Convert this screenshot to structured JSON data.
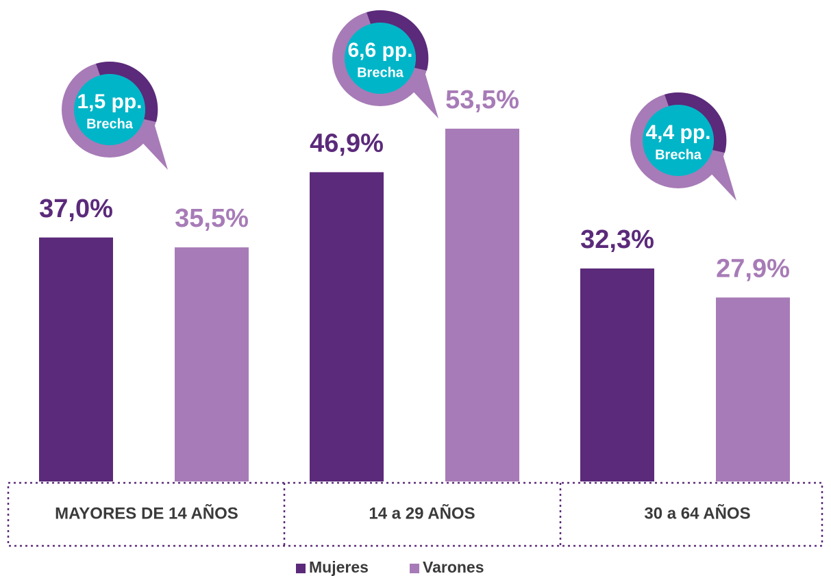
{
  "chart_data": {
    "type": "bar",
    "categories": [
      "MAYORES DE 14 AÑOS",
      "14 a 29 AÑOS",
      "30 a 64 AÑOS"
    ],
    "series": [
      {
        "name": "Mujeres",
        "color": "#5b2a7a",
        "values": [
          37.0,
          46.9,
          32.3
        ],
        "value_labels": [
          "37,0%",
          "46,9%",
          "32,3%"
        ]
      },
      {
        "name": "Varones",
        "color": "#a77bb7",
        "values": [
          35.5,
          53.5,
          27.9
        ],
        "value_labels": [
          "35,5%",
          "53,5%",
          "27,9%"
        ]
      }
    ],
    "ylim": [
      0,
      70
    ],
    "annotations": [
      {
        "text": "1,5 pp.",
        "subtext": "Brecha"
      },
      {
        "text": "6,6 pp.",
        "subtext": "Brecha"
      },
      {
        "text": "4,4 pp.",
        "subtext": "Brecha"
      }
    ]
  }
}
